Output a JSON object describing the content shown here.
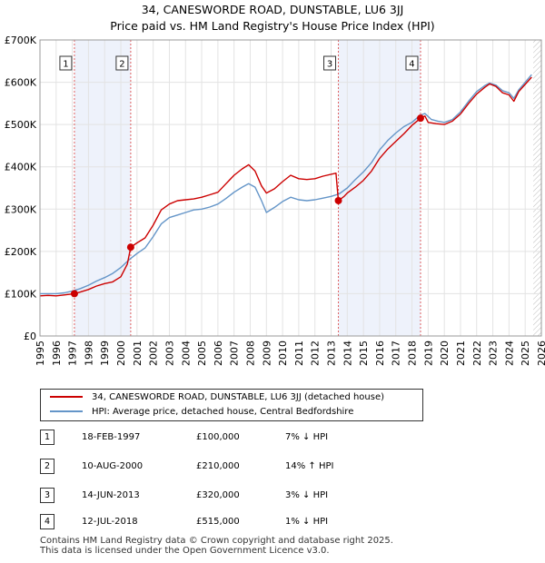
{
  "title_line1": "34, CANESWORDE ROAD, DUNSTABLE, LU6 3JJ",
  "title_line2": "Price paid vs. HM Land Registry's House Price Index (HPI)",
  "chart_data": {
    "type": "line",
    "x_range": [
      1995,
      2026
    ],
    "ylim": [
      0,
      700000
    ],
    "y_ticks": [
      0,
      100000,
      200000,
      300000,
      400000,
      500000,
      600000,
      700000
    ],
    "y_tick_labels": [
      "£0",
      "£100K",
      "£200K",
      "£300K",
      "£400K",
      "£500K",
      "£600K",
      "£700K"
    ],
    "x_ticks": [
      1995,
      1996,
      1997,
      1998,
      1999,
      2000,
      2001,
      2002,
      2003,
      2004,
      2005,
      2006,
      2007,
      2008,
      2009,
      2010,
      2011,
      2012,
      2013,
      2014,
      2015,
      2016,
      2017,
      2018,
      2019,
      2020,
      2021,
      2022,
      2023,
      2024,
      2025,
      2026
    ],
    "series": [
      {
        "name": "34, CANESWORDE ROAD, DUNSTABLE, LU6 3JJ (detached house)",
        "color": "#cc0000",
        "points": [
          [
            1995.0,
            95000
          ],
          [
            1995.5,
            96000
          ],
          [
            1996.0,
            95000
          ],
          [
            1996.5,
            97000
          ],
          [
            1997.13,
            100000
          ],
          [
            1997.5,
            104000
          ],
          [
            1998.0,
            110000
          ],
          [
            1998.5,
            118000
          ],
          [
            1999.0,
            124000
          ],
          [
            1999.5,
            128000
          ],
          [
            2000.0,
            140000
          ],
          [
            2000.4,
            170000
          ],
          [
            2000.61,
            210000
          ],
          [
            2001.0,
            220000
          ],
          [
            2001.5,
            232000
          ],
          [
            2002.0,
            262000
          ],
          [
            2002.5,
            298000
          ],
          [
            2003.0,
            312000
          ],
          [
            2003.5,
            320000
          ],
          [
            2004.0,
            322000
          ],
          [
            2004.5,
            324000
          ],
          [
            2005.0,
            328000
          ],
          [
            2005.5,
            334000
          ],
          [
            2006.0,
            340000
          ],
          [
            2006.5,
            360000
          ],
          [
            2007.0,
            380000
          ],
          [
            2007.5,
            395000
          ],
          [
            2007.9,
            405000
          ],
          [
            2008.3,
            390000
          ],
          [
            2008.7,
            355000
          ],
          [
            2009.0,
            338000
          ],
          [
            2009.5,
            348000
          ],
          [
            2010.0,
            365000
          ],
          [
            2010.5,
            380000
          ],
          [
            2011.0,
            372000
          ],
          [
            2011.5,
            370000
          ],
          [
            2012.0,
            372000
          ],
          [
            2012.5,
            378000
          ],
          [
            2013.3,
            385000
          ],
          [
            2013.45,
            320000
          ],
          [
            2013.8,
            330000
          ],
          [
            2014.0,
            338000
          ],
          [
            2014.5,
            352000
          ],
          [
            2015.0,
            368000
          ],
          [
            2015.5,
            390000
          ],
          [
            2016.0,
            420000
          ],
          [
            2016.5,
            442000
          ],
          [
            2017.0,
            460000
          ],
          [
            2017.5,
            478000
          ],
          [
            2018.0,
            498000
          ],
          [
            2018.53,
            515000
          ],
          [
            2018.8,
            520000
          ],
          [
            2019.0,
            505000
          ],
          [
            2019.5,
            502000
          ],
          [
            2020.0,
            500000
          ],
          [
            2020.5,
            508000
          ],
          [
            2021.0,
            525000
          ],
          [
            2021.5,
            550000
          ],
          [
            2022.0,
            572000
          ],
          [
            2022.5,
            588000
          ],
          [
            2022.8,
            596000
          ],
          [
            2023.2,
            590000
          ],
          [
            2023.6,
            575000
          ],
          [
            2024.0,
            570000
          ],
          [
            2024.3,
            555000
          ],
          [
            2024.6,
            578000
          ],
          [
            2025.0,
            595000
          ],
          [
            2025.4,
            612000
          ]
        ]
      },
      {
        "name": "HPI: Average price, detached house, Central Bedfordshire",
        "color": "#6495c8",
        "points": [
          [
            1995.0,
            100000
          ],
          [
            1995.5,
            100000
          ],
          [
            1996.0,
            100000
          ],
          [
            1996.5,
            102000
          ],
          [
            1997.0,
            106000
          ],
          [
            1997.5,
            112000
          ],
          [
            1998.0,
            120000
          ],
          [
            1998.5,
            130000
          ],
          [
            1999.0,
            138000
          ],
          [
            1999.5,
            148000
          ],
          [
            2000.0,
            162000
          ],
          [
            2000.5,
            180000
          ],
          [
            2001.0,
            195000
          ],
          [
            2001.5,
            208000
          ],
          [
            2002.0,
            235000
          ],
          [
            2002.5,
            265000
          ],
          [
            2003.0,
            280000
          ],
          [
            2003.5,
            286000
          ],
          [
            2004.0,
            292000
          ],
          [
            2004.5,
            298000
          ],
          [
            2005.0,
            300000
          ],
          [
            2005.5,
            305000
          ],
          [
            2006.0,
            312000
          ],
          [
            2006.5,
            325000
          ],
          [
            2007.0,
            340000
          ],
          [
            2007.5,
            352000
          ],
          [
            2007.9,
            360000
          ],
          [
            2008.3,
            352000
          ],
          [
            2008.7,
            320000
          ],
          [
            2009.0,
            292000
          ],
          [
            2009.5,
            304000
          ],
          [
            2010.0,
            318000
          ],
          [
            2010.5,
            328000
          ],
          [
            2011.0,
            322000
          ],
          [
            2011.5,
            320000
          ],
          [
            2012.0,
            322000
          ],
          [
            2012.5,
            326000
          ],
          [
            2013.0,
            330000
          ],
          [
            2013.5,
            336000
          ],
          [
            2014.0,
            350000
          ],
          [
            2014.5,
            370000
          ],
          [
            2015.0,
            388000
          ],
          [
            2015.5,
            410000
          ],
          [
            2016.0,
            440000
          ],
          [
            2016.5,
            462000
          ],
          [
            2017.0,
            480000
          ],
          [
            2017.5,
            495000
          ],
          [
            2018.0,
            505000
          ],
          [
            2018.5,
            522000
          ],
          [
            2018.8,
            526000
          ],
          [
            2019.2,
            512000
          ],
          [
            2019.6,
            508000
          ],
          [
            2020.0,
            505000
          ],
          [
            2020.5,
            512000
          ],
          [
            2021.0,
            530000
          ],
          [
            2021.5,
            555000
          ],
          [
            2022.0,
            578000
          ],
          [
            2022.5,
            592000
          ],
          [
            2022.8,
            598000
          ],
          [
            2023.2,
            593000
          ],
          [
            2023.6,
            580000
          ],
          [
            2024.0,
            575000
          ],
          [
            2024.3,
            562000
          ],
          [
            2024.6,
            582000
          ],
          [
            2025.0,
            600000
          ],
          [
            2025.4,
            618000
          ]
        ]
      }
    ],
    "sales": [
      {
        "n": "1",
        "x": 1997.13,
        "price": 100000
      },
      {
        "n": "2",
        "x": 2000.61,
        "price": 210000
      },
      {
        "n": "3",
        "x": 2013.45,
        "price": 320000
      },
      {
        "n": "4",
        "x": 2018.53,
        "price": 515000
      }
    ],
    "shaded_ranges": [
      [
        1997.13,
        2000.61
      ],
      [
        2013.45,
        2018.53
      ]
    ],
    "forecast_start": 2025.5
  },
  "legend": {
    "property": "34, CANESWORDE ROAD, DUNSTABLE, LU6 3JJ (detached house)",
    "hpi": "HPI: Average price, detached house, Central Bedfordshire"
  },
  "sales_table": [
    {
      "n": "1",
      "date": "18-FEB-1997",
      "price": "£100,000",
      "hpi": "7% ↓ HPI"
    },
    {
      "n": "2",
      "date": "10-AUG-2000",
      "price": "£210,000",
      "hpi": "14% ↑ HPI"
    },
    {
      "n": "3",
      "date": "14-JUN-2013",
      "price": "£320,000",
      "hpi": "3% ↓ HPI"
    },
    {
      "n": "4",
      "date": "12-JUL-2018",
      "price": "£515,000",
      "hpi": "1% ↓ HPI"
    }
  ],
  "footer": {
    "line1": "Contains HM Land Registry data © Crown copyright and database right 2025.",
    "line2": "This data is licensed under the Open Government Licence v3.0."
  }
}
